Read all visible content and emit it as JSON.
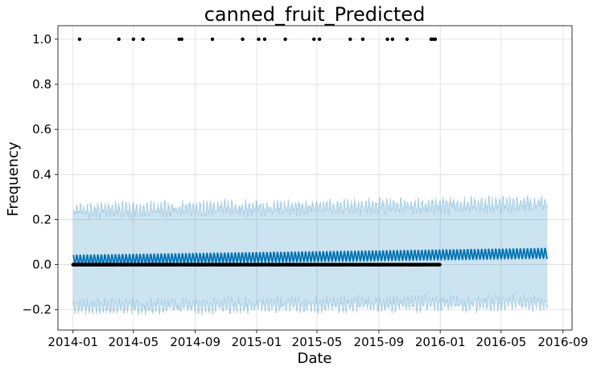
{
  "chart_data": {
    "type": "line",
    "title": "canned_fruit_Predicted",
    "xlabel": "Date",
    "ylabel": "Frequency",
    "xlim": [
      "2013-12-02",
      "2016-09-19"
    ],
    "ylim": [
      -0.29,
      1.06
    ],
    "grid": true,
    "x_ticks": [
      "2014-01",
      "2014-05",
      "2014-09",
      "2015-01",
      "2015-05",
      "2015-09",
      "2016-01",
      "2016-05",
      "2016-09"
    ],
    "y_ticks": [
      -0.2,
      0.0,
      0.2,
      0.4,
      0.6,
      0.8,
      1.0
    ],
    "y_tick_labels": [
      "−0.2",
      "0.0",
      "0.2",
      "0.4",
      "0.6",
      "0.8",
      "1.0"
    ],
    "forecast_range": [
      "2014-01-01",
      "2016-08-01"
    ],
    "trend": {
      "x": [
        "2014-01-01",
        "2016-08-01"
      ],
      "y": [
        0.02,
        0.05
      ]
    },
    "weekly_amplitude": 0.022,
    "uncertainty": {
      "lower": [
        -0.19,
        -0.17
      ],
      "upper": [
        0.24,
        0.27
      ],
      "noise": 0.02
    },
    "observed_zero_range": [
      "2014-01-01",
      "2015-12-31"
    ],
    "observed_ones": [
      "2014-01-14",
      "2014-04-02",
      "2014-05-01",
      "2014-05-20",
      "2014-07-31",
      "2014-08-05",
      "2014-10-05",
      "2014-12-04",
      "2015-01-05",
      "2015-01-17",
      "2015-02-27",
      "2015-04-25",
      "2015-05-06",
      "2015-07-06",
      "2015-07-31",
      "2015-09-18",
      "2015-09-28",
      "2015-10-27",
      "2015-12-14",
      "2015-12-18",
      "2015-12-22"
    ],
    "colors": {
      "forecast": "#0072b2",
      "interval_fill": "#0072b2",
      "observed": "#000000",
      "grid": "#dcdcdc"
    }
  }
}
